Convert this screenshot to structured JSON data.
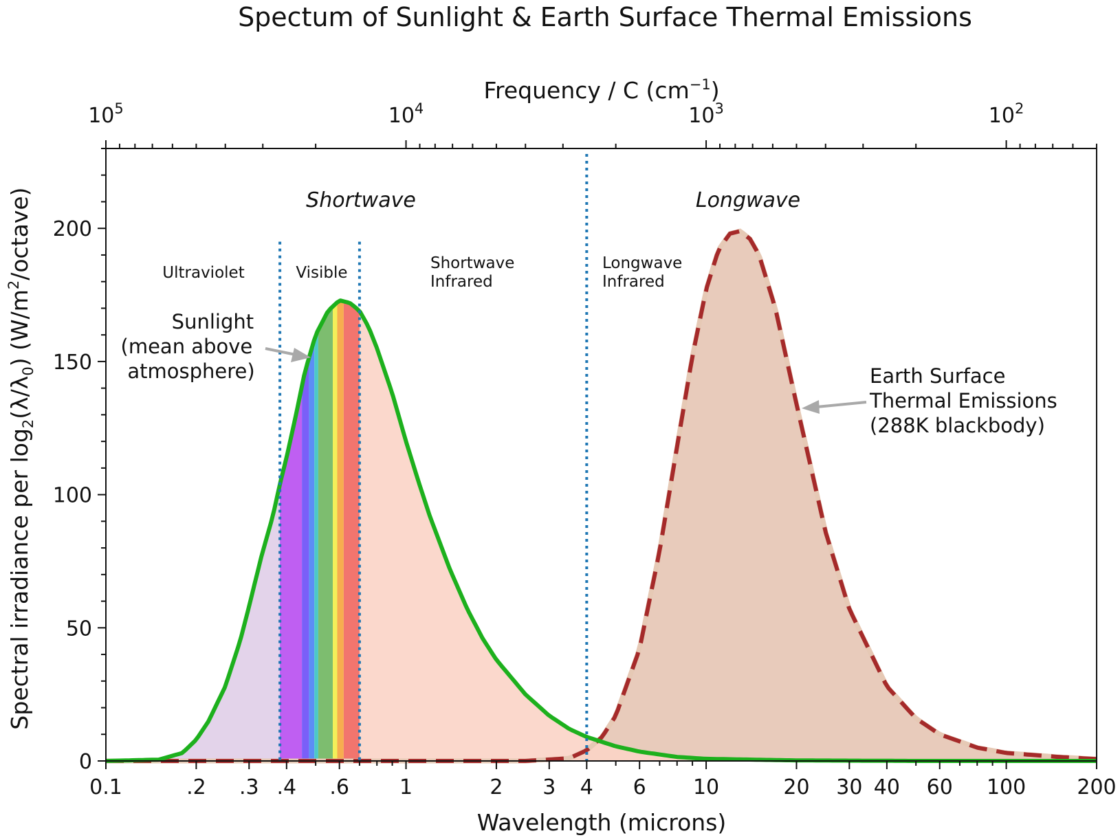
{
  "chart_data": {
    "type": "area",
    "title": "Spectum of Sunlight & Earth Surface Thermal Emissions",
    "xlabel": "Wavelength   (microns)",
    "ylabel_parts": [
      "Spectral irradiance per log",
      "2",
      "(λ/λ",
      "0",
      ")   (W/m",
      "2",
      "/octave)"
    ],
    "x2label_parts": [
      "Frequency / C   (cm",
      "−1",
      ")"
    ],
    "xscale": "log",
    "xlim": [
      0.1,
      200
    ],
    "ylim": [
      0,
      230
    ],
    "grid": false,
    "x_ticks": [
      {
        "value": 0.1,
        "label": "0.1"
      },
      {
        "value": 0.2,
        "label": ".2"
      },
      {
        "value": 0.3,
        "label": ".3"
      },
      {
        "value": 0.4,
        "label": ".4"
      },
      {
        "value": 0.6,
        "label": ".6"
      },
      {
        "value": 1,
        "label": "1"
      },
      {
        "value": 2,
        "label": "2"
      },
      {
        "value": 3,
        "label": "3"
      },
      {
        "value": 4,
        "label": "4"
      },
      {
        "value": 6,
        "label": "6"
      },
      {
        "value": 10,
        "label": "10"
      },
      {
        "value": 20,
        "label": "20"
      },
      {
        "value": 30,
        "label": "30"
      },
      {
        "value": 40,
        "label": "40"
      },
      {
        "value": 60,
        "label": "60"
      },
      {
        "value": 100,
        "label": "100"
      },
      {
        "value": 200,
        "label": "200"
      }
    ],
    "y_ticks": [
      {
        "value": 0,
        "label": "0"
      },
      {
        "value": 50,
        "label": "50"
      },
      {
        "value": 100,
        "label": "100"
      },
      {
        "value": 150,
        "label": "150"
      },
      {
        "value": 200,
        "label": "200"
      }
    ],
    "top_ticks": [
      {
        "value": 100000,
        "base": "10",
        "exp": "5"
      },
      {
        "value": 10000,
        "base": "10",
        "exp": "4"
      },
      {
        "value": 1000,
        "base": "10",
        "exp": "3"
      },
      {
        "value": 100,
        "base": "10",
        "exp": "2"
      }
    ],
    "boundaries": [
      0.38,
      0.7,
      4
    ],
    "visible_bands": [
      {
        "from": 0.38,
        "to": 0.45,
        "color": "#bf5ff2"
      },
      {
        "from": 0.45,
        "to": 0.475,
        "color": "#7a5ff8"
      },
      {
        "from": 0.475,
        "to": 0.495,
        "color": "#5c8ef6"
      },
      {
        "from": 0.495,
        "to": 0.51,
        "color": "#4cc9c9"
      },
      {
        "from": 0.51,
        "to": 0.57,
        "color": "#7dbd6f"
      },
      {
        "from": 0.57,
        "to": 0.59,
        "color": "#f4ef5a"
      },
      {
        "from": 0.59,
        "to": 0.62,
        "color": "#f7ad4f"
      },
      {
        "from": 0.62,
        "to": 0.7,
        "color": "#f2756e"
      }
    ],
    "region_fills": {
      "ultraviolet": "#e3d3ea",
      "shortwave_infrared": "#fbd4c7",
      "earth": "#e8cbbb"
    },
    "series": [
      {
        "name": "Sunlight",
        "style": "solid",
        "color": "#1db01d",
        "x": [
          0.1,
          0.15,
          0.18,
          0.2,
          0.22,
          0.25,
          0.28,
          0.3,
          0.33,
          0.36,
          0.38,
          0.4,
          0.43,
          0.46,
          0.5,
          0.55,
          0.6,
          0.65,
          0.7,
          0.75,
          0.8,
          0.9,
          1.0,
          1.1,
          1.2,
          1.4,
          1.6,
          1.8,
          2.0,
          2.5,
          3.0,
          3.5,
          4.0,
          5.0,
          6.0,
          8.0,
          10,
          20,
          50,
          200
        ],
        "y": [
          0,
          0.5,
          3,
          8,
          15,
          28,
          45,
          58,
          77,
          92,
          104,
          114,
          130,
          146,
          160,
          169,
          173,
          172,
          169,
          163,
          155,
          138,
          120,
          105,
          92,
          72,
          57,
          46,
          38,
          25,
          17,
          12,
          9,
          5.5,
          3.5,
          1.5,
          0.8,
          0.2,
          0,
          0
        ]
      },
      {
        "name": "Earth Surface Thermal Emissions",
        "style": "dashed",
        "color": "#a52a2a",
        "x": [
          0.1,
          1,
          2.5,
          3.5,
          4.0,
          4.5,
          5,
          6,
          7,
          8,
          9,
          10,
          11,
          12,
          13,
          14,
          15,
          17,
          20,
          25,
          30,
          40,
          50,
          60,
          80,
          100,
          150,
          200
        ],
        "y": [
          0,
          0,
          0,
          1,
          4,
          9,
          17,
          42,
          79,
          118,
          152,
          177,
          192,
          198,
          199,
          196,
          190,
          170,
          134,
          86,
          57,
          28,
          16,
          10,
          5,
          3,
          1.5,
          0.7
        ]
      }
    ],
    "region_labels": {
      "shortwave": "Shortwave",
      "longwave": "Longwave",
      "ultraviolet": "Ultraviolet",
      "visible": "Visible",
      "sw_infrared": [
        "Shortwave",
        "Infrared"
      ],
      "lw_infrared": [
        "Longwave",
        "Infrared"
      ]
    },
    "annotations": {
      "sunlight": [
        "Sunlight",
        "(mean above",
        "atmosphere)"
      ],
      "earth": [
        "Earth Surface",
        "Thermal Emissions",
        "(288K blackbody)"
      ]
    }
  }
}
